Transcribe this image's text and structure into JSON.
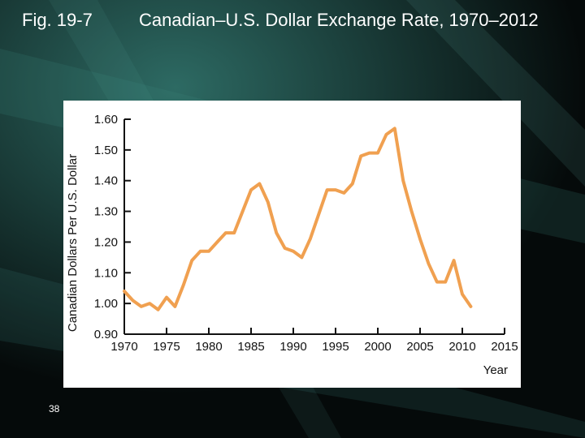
{
  "slide": {
    "figure_label": "Fig. 19-7",
    "title": "Canadian–U.S. Dollar Exchange Rate, 1970–2012",
    "page_number": "38"
  },
  "colors": {
    "background": "#000000",
    "panel": "#ffffff",
    "line": "#f0a050",
    "axis": "#111111"
  },
  "chart_data": {
    "type": "line",
    "title": "",
    "xlabel": "Year",
    "ylabel": "Canadian Dollars Per U.S. Dollar",
    "xlim": [
      1970,
      2015
    ],
    "ylim": [
      0.9,
      1.6
    ],
    "x_ticks": [
      1970,
      1975,
      1980,
      1985,
      1990,
      1995,
      2000,
      2005,
      2010,
      2015
    ],
    "x_tick_labels": [
      "1970",
      "1975",
      "1980",
      "1985",
      "1990",
      "1995",
      "2000",
      "2005",
      "2010",
      "2015"
    ],
    "y_ticks": [
      0.9,
      1.0,
      1.1,
      1.2,
      1.3,
      1.4,
      1.5,
      1.6
    ],
    "y_tick_labels": [
      "0.90",
      "1.00",
      "1.10",
      "1.20",
      "1.30",
      "1.40",
      "1.50",
      "1.60"
    ],
    "series": [
      {
        "name": "Canadian dollars per U.S. dollar",
        "x": [
          1970,
          1971,
          1972,
          1973,
          1974,
          1975,
          1976,
          1977,
          1978,
          1979,
          1980,
          1981,
          1982,
          1983,
          1984,
          1985,
          1986,
          1987,
          1988,
          1989,
          1990,
          1991,
          1992,
          1993,
          1994,
          1995,
          1996,
          1997,
          1998,
          1999,
          2000,
          2001,
          2002,
          2003,
          2004,
          2005,
          2006,
          2007,
          2008,
          2009,
          2010,
          2011
        ],
        "values": [
          1.04,
          1.01,
          0.99,
          1.0,
          0.98,
          1.02,
          0.99,
          1.06,
          1.14,
          1.17,
          1.17,
          1.2,
          1.23,
          1.23,
          1.3,
          1.37,
          1.39,
          1.33,
          1.23,
          1.18,
          1.17,
          1.15,
          1.21,
          1.29,
          1.37,
          1.37,
          1.36,
          1.39,
          1.48,
          1.49,
          1.49,
          1.55,
          1.57,
          1.4,
          1.3,
          1.21,
          1.13,
          1.07,
          1.07,
          1.14,
          1.03,
          0.99
        ]
      }
    ]
  }
}
